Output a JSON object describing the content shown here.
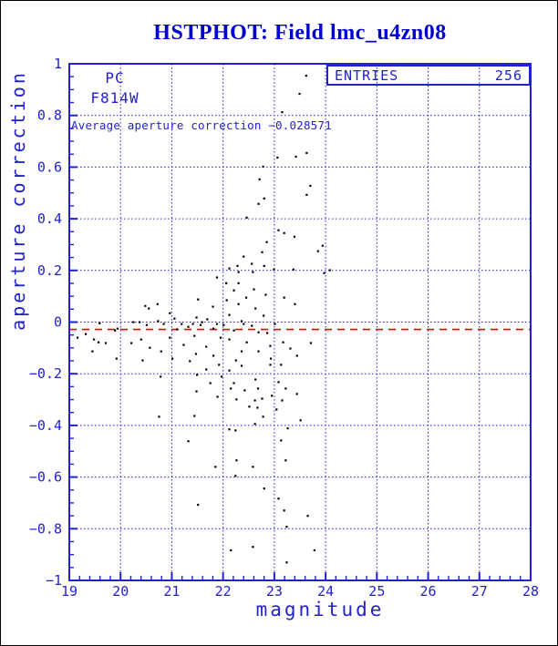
{
  "header": {
    "title": "HSTPHOT: Field lmc_u4zn08"
  },
  "plot": {
    "camera_label": "PC",
    "filter_label": "F814W",
    "entries_label": "ENTRIES",
    "entries_value": "256",
    "average_text": "Average aperture correction −0.028571"
  },
  "colors": {
    "axis_blue": "#2222cc",
    "title_blue": "#0000cc",
    "reference_red": "#ee0000",
    "point_black": "#000000"
  },
  "chart_data": {
    "type": "scatter",
    "title": "HSTPHOT: Field lmc_u4zn08",
    "xlabel": "magnitude",
    "ylabel": "aperture correction",
    "xlim": [
      19,
      28
    ],
    "ylim": [
      -1,
      1
    ],
    "x_tick_labels": [
      "19",
      "20",
      "21",
      "22",
      "23",
      "24",
      "25",
      "26",
      "27",
      "28"
    ],
    "x_major_ticks": [
      19,
      20,
      21,
      22,
      23,
      24,
      25,
      26,
      27,
      28
    ],
    "x_minor_step": 0.2,
    "y_tick_labels": [
      "−1",
      "−0.8",
      "−0.6",
      "−0.4",
      "−0.2",
      "0",
      "0.2",
      "0.4",
      "0.6",
      "0.8",
      "1"
    ],
    "y_major_ticks": [
      -1,
      -0.8,
      -0.6,
      -0.4,
      -0.2,
      0,
      0.2,
      0.4,
      0.6,
      0.8,
      1
    ],
    "y_minor_step": 0.05,
    "grid": "dotted blue lines at every major tick",
    "legend_position": "top-right box with entries count",
    "entries": 256,
    "average_aperture_correction": -0.028571,
    "reference_line_y": -0.028571,
    "points": [
      [
        23.62,
        0.954
      ],
      [
        23.49,
        0.884
      ],
      [
        23.15,
        0.813
      ],
      [
        23.63,
        0.655
      ],
      [
        23.42,
        0.641
      ],
      [
        23.06,
        0.637
      ],
      [
        22.78,
        0.602
      ],
      [
        22.71,
        0.553
      ],
      [
        23.7,
        0.528
      ],
      [
        23.63,
        0.493
      ],
      [
        22.8,
        0.479
      ],
      [
        22.69,
        0.458
      ],
      [
        22.46,
        0.405
      ],
      [
        23.08,
        0.356
      ],
      [
        23.19,
        0.345
      ],
      [
        23.39,
        0.331
      ],
      [
        22.85,
        0.31
      ],
      [
        23.94,
        0.296
      ],
      [
        23.85,
        0.275
      ],
      [
        22.76,
        0.271
      ],
      [
        22.4,
        0.254
      ],
      [
        22.56,
        0.226
      ],
      [
        22.28,
        0.218
      ],
      [
        22.8,
        0.218
      ],
      [
        22.12,
        0.208
      ],
      [
        22.99,
        0.204
      ],
      [
        23.37,
        0.204
      ],
      [
        24.08,
        0.201
      ],
      [
        23.97,
        0.19
      ],
      [
        22.3,
        0.194
      ],
      [
        22.58,
        0.194
      ],
      [
        21.88,
        0.173
      ],
      [
        22.06,
        0.151
      ],
      [
        22.3,
        0.151
      ],
      [
        22.6,
        0.127
      ],
      [
        22.21,
        0.123
      ],
      [
        22.83,
        0.106
      ],
      [
        22.45,
        0.095
      ],
      [
        23.19,
        0.095
      ],
      [
        21.51,
        0.088
      ],
      [
        22.07,
        0.085
      ],
      [
        20.72,
        0.07
      ],
      [
        23.4,
        0.07
      ],
      [
        22.3,
        0.07
      ],
      [
        20.48,
        0.063
      ],
      [
        21.8,
        0.06
      ],
      [
        20.55,
        0.053
      ],
      [
        22.63,
        0.053
      ],
      [
        20.96,
        0.035
      ],
      [
        22.12,
        0.028
      ],
      [
        22.79,
        0.025
      ],
      [
        21.48,
        0.018
      ],
      [
        21.05,
        0.014
      ],
      [
        21.69,
        0.011
      ],
      [
        20.73,
        0.004
      ],
      [
        22.36,
        0.004
      ],
      [
        20.25,
        0.0
      ],
      [
        20.37,
        0.0
      ],
      [
        21.59,
        0.0
      ],
      [
        19.59,
        -0.004
      ],
      [
        20.84,
        -0.007
      ],
      [
        21.19,
        -0.007
      ],
      [
        21.41,
        -0.007
      ],
      [
        21.88,
        -0.007
      ],
      [
        22.4,
        -0.007
      ],
      [
        23.01,
        -0.007
      ],
      [
        20.51,
        -0.011
      ],
      [
        21.56,
        -0.011
      ],
      [
        22.01,
        -0.011
      ],
      [
        22.56,
        -0.014
      ],
      [
        21.32,
        -0.018
      ],
      [
        19.94,
        -0.025
      ],
      [
        21.81,
        -0.025
      ],
      [
        21.1,
        -0.028
      ],
      [
        19.89,
        -0.032
      ],
      [
        22.21,
        -0.032
      ],
      [
        22.69,
        -0.039
      ],
      [
        22.86,
        -0.042
      ],
      [
        19.32,
        -0.046
      ],
      [
        21.44,
        -0.053
      ],
      [
        19.16,
        -0.06
      ],
      [
        20.96,
        -0.06
      ],
      [
        21.95,
        -0.06
      ],
      [
        19.48,
        -0.067
      ],
      [
        20.4,
        -0.067
      ],
      [
        22.12,
        -0.067
      ],
      [
        19.57,
        -0.078
      ],
      [
        22.46,
        -0.078
      ],
      [
        23.17,
        -0.078
      ],
      [
        19.71,
        -0.081
      ],
      [
        20.21,
        -0.081
      ],
      [
        23.71,
        -0.081
      ],
      [
        21.23,
        -0.088
      ],
      [
        22.92,
        -0.092
      ],
      [
        21.67,
        -0.095
      ],
      [
        20.57,
        -0.099
      ],
      [
        23.31,
        -0.102
      ],
      [
        19.45,
        -0.113
      ],
      [
        20.79,
        -0.113
      ],
      [
        22.36,
        -0.113
      ],
      [
        22.69,
        -0.113
      ],
      [
        21.47,
        -0.123
      ],
      [
        21.81,
        -0.13
      ],
      [
        23.44,
        -0.13
      ],
      [
        19.92,
        -0.141
      ],
      [
        21.01,
        -0.141
      ],
      [
        22.93,
        -0.141
      ],
      [
        20.43,
        -0.148
      ],
      [
        22.25,
        -0.148
      ],
      [
        21.35,
        -0.151
      ],
      [
        21.92,
        -0.165
      ],
      [
        22.92,
        -0.165
      ],
      [
        23.13,
        -0.165
      ],
      [
        22.36,
        -0.169
      ],
      [
        21.67,
        -0.183
      ],
      [
        22.12,
        -0.187
      ],
      [
        21.49,
        -0.204
      ],
      [
        20.78,
        -0.211
      ],
      [
        21.97,
        -0.211
      ],
      [
        22.63,
        -0.222
      ],
      [
        23.08,
        -0.232
      ],
      [
        21.75,
        -0.236
      ],
      [
        22.21,
        -0.236
      ],
      [
        22.15,
        -0.257
      ],
      [
        22.68,
        -0.257
      ],
      [
        23.22,
        -0.257
      ],
      [
        22.42,
        -0.264
      ],
      [
        21.48,
        -0.268
      ],
      [
        23.44,
        -0.278
      ],
      [
        22.95,
        -0.285
      ],
      [
        21.89,
        -0.289
      ],
      [
        22.76,
        -0.296
      ],
      [
        22.26,
        -0.299
      ],
      [
        22.62,
        -0.303
      ],
      [
        23.15,
        -0.303
      ],
      [
        22.51,
        -0.327
      ],
      [
        22.67,
        -0.331
      ],
      [
        23.04,
        -0.338
      ],
      [
        20.75,
        -0.366
      ],
      [
        21.44,
        -0.363
      ],
      [
        22.78,
        -0.366
      ],
      [
        23.51,
        -0.38
      ],
      [
        22.62,
        -0.394
      ],
      [
        23.26,
        -0.411
      ],
      [
        22.12,
        -0.415
      ],
      [
        22.24,
        -0.419
      ],
      [
        23.13,
        -0.458
      ],
      [
        21.32,
        -0.461
      ],
      [
        22.26,
        -0.535
      ],
      [
        23.22,
        -0.535
      ],
      [
        21.85,
        -0.56
      ],
      [
        22.58,
        -0.56
      ],
      [
        22.24,
        -0.595
      ],
      [
        22.8,
        -0.644
      ],
      [
        23.08,
        -0.683
      ],
      [
        21.51,
        -0.707
      ],
      [
        23.19,
        -0.729
      ],
      [
        23.65,
        -0.75
      ],
      [
        23.24,
        -0.792
      ],
      [
        22.58,
        -0.87
      ],
      [
        22.15,
        -0.883
      ],
      [
        23.78,
        -0.883
      ],
      [
        23.24,
        -0.93
      ]
    ]
  }
}
